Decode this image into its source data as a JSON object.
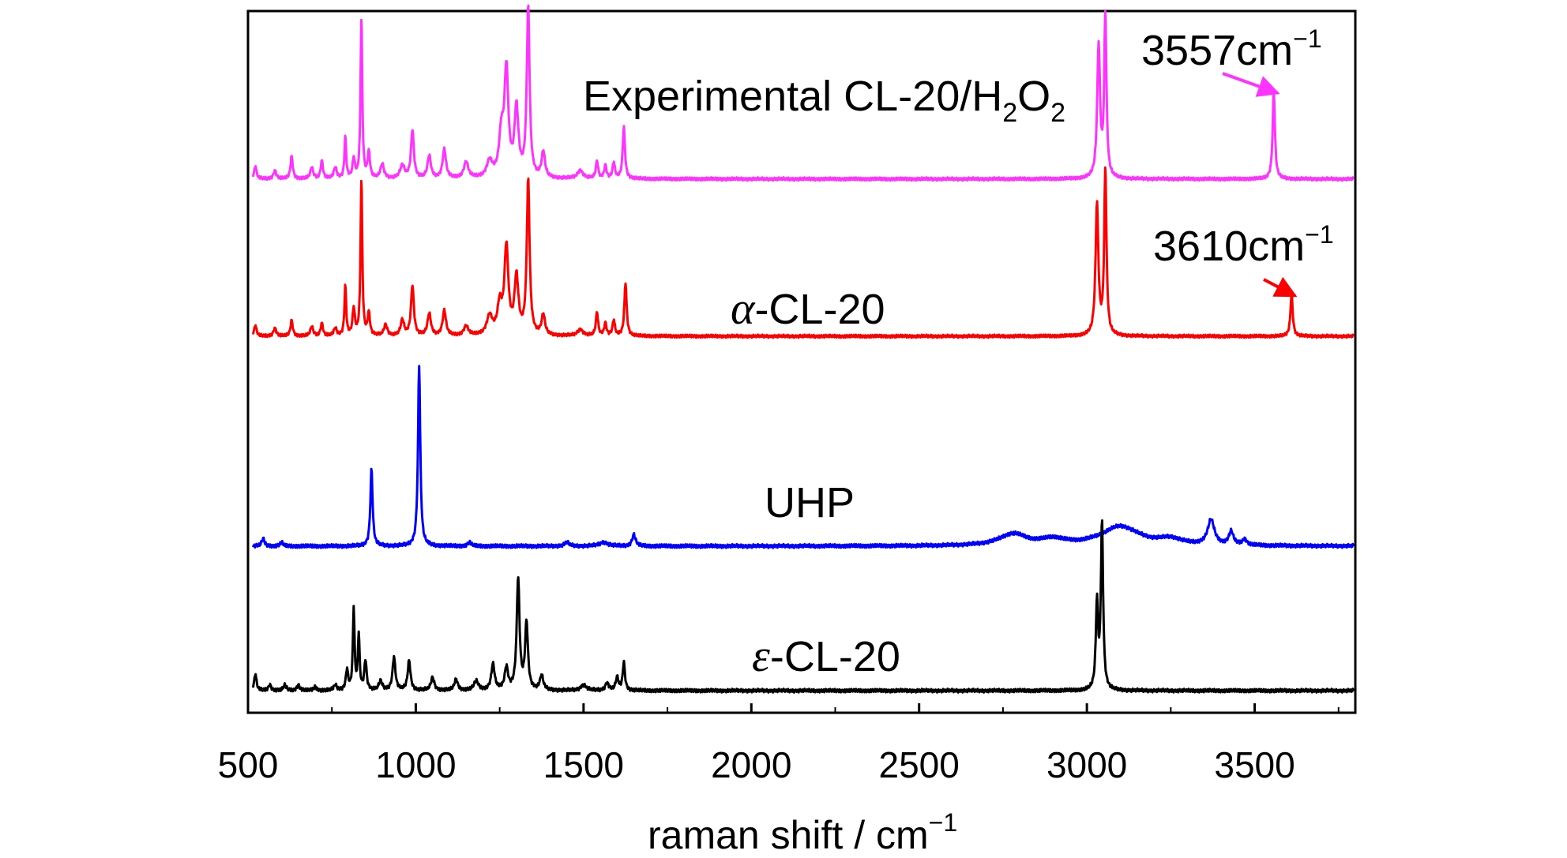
{
  "chart_data": {
    "type": "line",
    "xlabel": "raman shift / cm",
    "xlabel_sup": "−1",
    "ylabel": "",
    "xlim": [
      500,
      3800
    ],
    "x_ticks": [
      "500",
      "1000",
      "1500",
      "2000",
      "2500",
      "3000",
      "3500"
    ],
    "y_ticks": false,
    "grid": false,
    "legend": "none",
    "series": [
      {
        "name": "Experimental CL-20/H2O2",
        "label_parts": {
          "main": "Experimental CL-20/H",
          "sub1": "2",
          "mid": "O",
          "sub2": "2"
        },
        "color": "#ff33ff",
        "baseline": 0.04,
        "peaks": [
          [
            522,
            0.08,
            4
          ],
          [
            580,
            0.05,
            5
          ],
          [
            630,
            0.14,
            4
          ],
          [
            690,
            0.07,
            5
          ],
          [
            720,
            0.11,
            4
          ],
          [
            760,
            0.07,
            5
          ],
          [
            790,
            0.26,
            3
          ],
          [
            815,
            0.12,
            4
          ],
          [
            838,
            1.0,
            3
          ],
          [
            860,
            0.16,
            4
          ],
          [
            900,
            0.09,
            6
          ],
          [
            960,
            0.08,
            8
          ],
          [
            990,
            0.3,
            5
          ],
          [
            1040,
            0.14,
            6
          ],
          [
            1085,
            0.18,
            6
          ],
          [
            1150,
            0.1,
            8
          ],
          [
            1220,
            0.1,
            10
          ],
          [
            1255,
            0.25,
            8
          ],
          [
            1270,
            0.65,
            7
          ],
          [
            1300,
            0.42,
            7
          ],
          [
            1335,
            1.05,
            5
          ],
          [
            1380,
            0.16,
            6
          ],
          [
            1490,
            0.05,
            10
          ],
          [
            1540,
            0.11,
            4
          ],
          [
            1565,
            0.08,
            4
          ],
          [
            1590,
            0.1,
            4
          ],
          [
            1620,
            0.32,
            4
          ],
          [
            3035,
            0.82,
            5
          ],
          [
            3055,
            1.0,
            4
          ],
          [
            3557,
            0.55,
            4
          ]
        ],
        "annotation": {
          "text": "3557cm",
          "sup": "−1",
          "x": 3557
        }
      },
      {
        "name": "α-CL-20",
        "label_parts": {
          "greek": "α",
          "main": "-CL-20"
        },
        "color": "#ff0000",
        "baseline": 0.03,
        "peaks": [
          [
            522,
            0.07,
            4
          ],
          [
            580,
            0.05,
            5
          ],
          [
            630,
            0.1,
            4
          ],
          [
            690,
            0.06,
            5
          ],
          [
            720,
            0.08,
            4
          ],
          [
            760,
            0.05,
            5
          ],
          [
            790,
            0.32,
            3
          ],
          [
            815,
            0.17,
            4
          ],
          [
            838,
            1.0,
            3
          ],
          [
            860,
            0.14,
            4
          ],
          [
            910,
            0.07,
            6
          ],
          [
            960,
            0.1,
            6
          ],
          [
            990,
            0.32,
            5
          ],
          [
            1040,
            0.14,
            6
          ],
          [
            1085,
            0.16,
            6
          ],
          [
            1150,
            0.06,
            8
          ],
          [
            1220,
            0.12,
            10
          ],
          [
            1250,
            0.18,
            8
          ],
          [
            1270,
            0.55,
            7
          ],
          [
            1300,
            0.36,
            7
          ],
          [
            1335,
            0.98,
            5
          ],
          [
            1380,
            0.13,
            6
          ],
          [
            1490,
            0.04,
            10
          ],
          [
            1540,
            0.15,
            4
          ],
          [
            1565,
            0.08,
            4
          ],
          [
            1590,
            0.1,
            4
          ],
          [
            1625,
            0.34,
            4
          ],
          [
            3030,
            0.83,
            5
          ],
          [
            3055,
            1.05,
            4
          ],
          [
            3610,
            0.27,
            4
          ]
        ],
        "annotation": {
          "text": "3610cm",
          "sup": "−1",
          "x": 3610
        }
      },
      {
        "name": "UHP",
        "label_parts": {
          "main": "UHP"
        },
        "color": "#0000ff",
        "baseline": 0.0,
        "peaks": [
          [
            545,
            0.04,
            5
          ],
          [
            600,
            0.02,
            5
          ],
          [
            868,
            0.4,
            4
          ],
          [
            1010,
            0.94,
            4
          ],
          [
            1160,
            0.02,
            6
          ],
          [
            1450,
            0.02,
            8
          ],
          [
            1560,
            0.02,
            15
          ],
          [
            1650,
            0.06,
            6
          ],
          [
            2780,
            0.06,
            50
          ],
          [
            2900,
            0.03,
            40
          ],
          [
            3100,
            0.1,
            70
          ],
          [
            3250,
            0.03,
            40
          ],
          [
            3370,
            0.13,
            12
          ],
          [
            3430,
            0.07,
            8
          ],
          [
            3470,
            0.03,
            8
          ]
        ]
      },
      {
        "name": "ε-CL-20",
        "label_parts": {
          "greek": "ε",
          "main": "-CL-20"
        },
        "color": "#000000",
        "baseline": 0.0,
        "peaks": [
          [
            522,
            0.09,
            4
          ],
          [
            565,
            0.03,
            5
          ],
          [
            610,
            0.03,
            5
          ],
          [
            650,
            0.03,
            5
          ],
          [
            700,
            0.02,
            5
          ],
          [
            760,
            0.03,
            5
          ],
          [
            795,
            0.11,
            4
          ],
          [
            815,
            0.44,
            3
          ],
          [
            830,
            0.3,
            3
          ],
          [
            850,
            0.16,
            4
          ],
          [
            895,
            0.05,
            6
          ],
          [
            935,
            0.18,
            5
          ],
          [
            980,
            0.16,
            5
          ],
          [
            1050,
            0.07,
            6
          ],
          [
            1120,
            0.06,
            6
          ],
          [
            1180,
            0.05,
            8
          ],
          [
            1230,
            0.14,
            6
          ],
          [
            1270,
            0.12,
            6
          ],
          [
            1305,
            0.6,
            5
          ],
          [
            1330,
            0.36,
            5
          ],
          [
            1375,
            0.08,
            6
          ],
          [
            1500,
            0.03,
            10
          ],
          [
            1570,
            0.04,
            6
          ],
          [
            1600,
            0.07,
            5
          ],
          [
            1620,
            0.15,
            4
          ],
          [
            3030,
            0.46,
            4
          ],
          [
            3045,
            0.9,
            4
          ]
        ]
      }
    ]
  }
}
